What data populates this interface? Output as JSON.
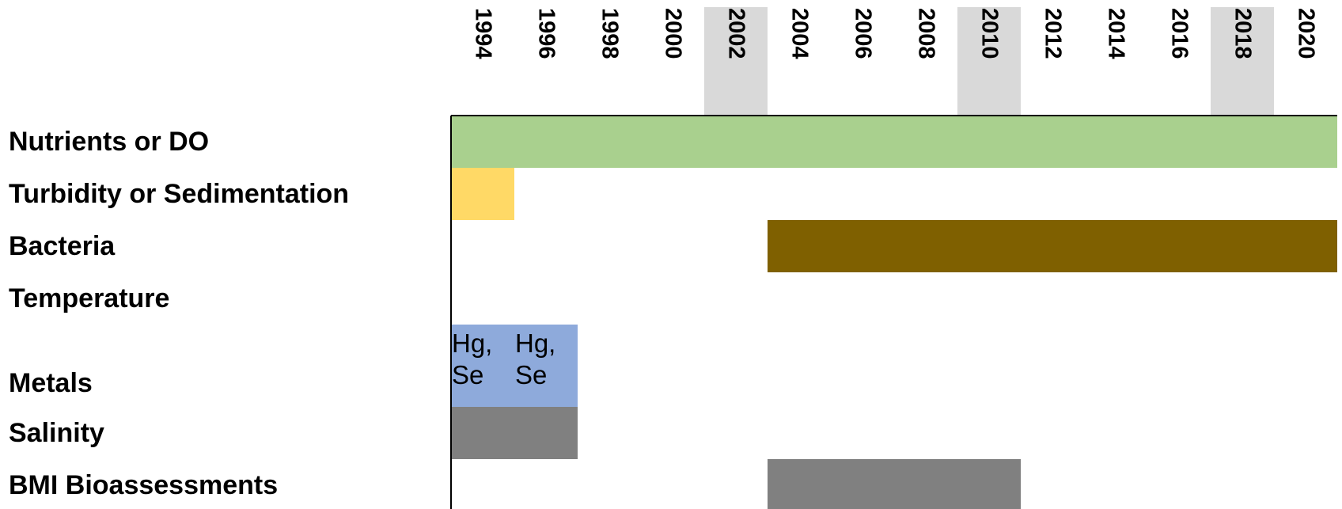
{
  "header": {
    "columns": [
      {
        "year": "1994"
      },
      {
        "year": "1996"
      },
      {
        "year": "1998"
      },
      {
        "year": "2000"
      },
      {
        "year": "2002",
        "shade": "#d9d9d9"
      },
      {
        "year": "2004"
      },
      {
        "year": "2006"
      },
      {
        "year": "2008"
      },
      {
        "year": "2010",
        "shade": "#d9d9d9"
      },
      {
        "year": "2012"
      },
      {
        "year": "2014"
      },
      {
        "year": "2016"
      },
      {
        "year": "2018",
        "shade": "#d9d9d9"
      },
      {
        "year": "2020"
      }
    ]
  },
  "rows": [
    {
      "label": "Nutrients or DO",
      "fills": [
        "#a9d08e",
        "#a9d08e",
        "#a9d08e",
        "#a9d08e",
        "#a9d08e",
        "#a9d08e",
        "#a9d08e",
        "#a9d08e",
        "#a9d08e",
        "#a9d08e",
        "#a9d08e",
        "#a9d08e",
        "#a9d08e",
        "#a9d08e"
      ]
    },
    {
      "label": "Turbidity or Sedimentation",
      "fills": [
        "#ffd966",
        null,
        null,
        null,
        null,
        null,
        null,
        null,
        null,
        null,
        null,
        null,
        null,
        null
      ]
    },
    {
      "label": "Bacteria",
      "fills": [
        null,
        null,
        null,
        null,
        null,
        "#7f6000",
        "#7f6000",
        "#7f6000",
        "#7f6000",
        "#7f6000",
        "#7f6000",
        "#7f6000",
        "#7f6000",
        "#7f6000"
      ]
    },
    {
      "label": "Temperature",
      "fills": [
        null,
        null,
        null,
        null,
        null,
        null,
        null,
        null,
        null,
        null,
        null,
        null,
        null,
        null
      ]
    },
    {
      "label": "Metals",
      "tall": true,
      "fills": [
        "#8eaadb",
        "#8eaadb",
        null,
        null,
        null,
        null,
        null,
        null,
        null,
        null,
        null,
        null,
        null,
        null
      ],
      "texts": [
        "Hg, Se",
        "Hg, Se",
        null,
        null,
        null,
        null,
        null,
        null,
        null,
        null,
        null,
        null,
        null,
        null
      ]
    },
    {
      "label": "Salinity",
      "fills": [
        "#808080",
        "#808080",
        null,
        null,
        null,
        null,
        null,
        null,
        null,
        null,
        null,
        null,
        null,
        null
      ]
    },
    {
      "label": "BMI Bioassessments",
      "fills": [
        null,
        null,
        null,
        null,
        null,
        "#808080",
        "#808080",
        "#808080",
        "#808080",
        null,
        null,
        null,
        null,
        null
      ]
    }
  ]
}
